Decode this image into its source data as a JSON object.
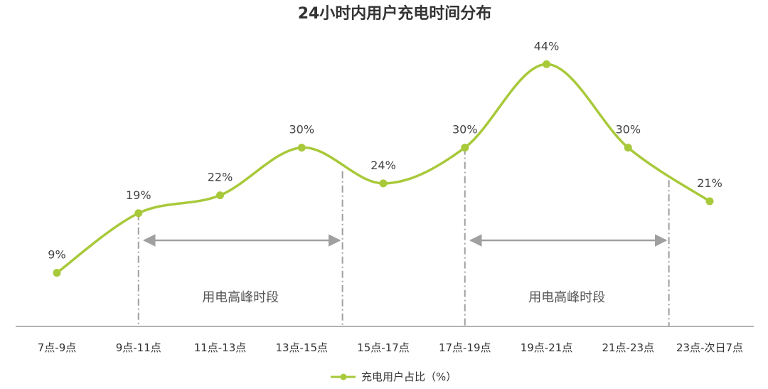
{
  "chart_data": {
    "type": "line",
    "title": "24小时内用户充电时间分布",
    "categories": [
      "7点-9点",
      "9点-11点",
      "11点-13点",
      "13点-15点",
      "15点-17点",
      "17点-19点",
      "19点-21点",
      "21点-23点",
      "23点-次日7点"
    ],
    "series": [
      {
        "name": "充电用户占比（%）",
        "values": [
          9,
          19,
          22,
          30,
          24,
          30,
          44,
          30,
          21
        ],
        "color": "#a8c93a"
      }
    ],
    "data_labels": [
      "9%",
      "19%",
      "22%",
      "30%",
      "24%",
      "30%",
      "44%",
      "30%",
      "21%"
    ],
    "ylim": [
      0,
      50
    ],
    "grid": false,
    "legend": "bottom-center",
    "annotations": [
      {
        "text": "用电高峰时段",
        "from_category": 1,
        "to_category": 3
      },
      {
        "text": "用电高峰时段",
        "from_category": 5,
        "to_category": 7
      }
    ],
    "axis_color": "#999999"
  }
}
